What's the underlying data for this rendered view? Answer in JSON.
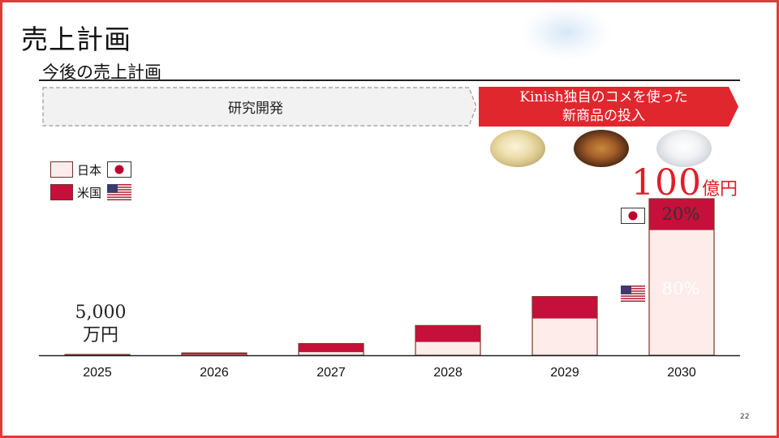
{
  "slide": {
    "title": "売上計画",
    "subtitle": "今後の売上計画",
    "page_number": "22"
  },
  "phases": [
    {
      "label": "研究開発"
    },
    {
      "label": "Kinish独自のコメを使った\n新商品の投入"
    }
  ],
  "legend": [
    {
      "label": "日本",
      "flag": "japan-flag-icon",
      "color": "#fdecea"
    },
    {
      "label": "米国",
      "flag": "usa-flag-icon",
      "color": "#c4103a"
    }
  ],
  "annotations": {
    "amount_2025": "5,000\n万円",
    "total_2030_value": "100",
    "total_2030_unit": "億円",
    "share_japan": "20%",
    "share_us": "80%",
    "accent_color": "#e11d2a"
  },
  "chart_data": {
    "type": "bar",
    "stacked": true,
    "categories": [
      "2025",
      "2026",
      "2027",
      "2028",
      "2029",
      "2030"
    ],
    "series": [
      {
        "name": "米国",
        "values": [
          0.3,
          0.5,
          2,
          8.5,
          23.5,
          80
        ]
      },
      {
        "name": "日本",
        "values": [
          0.2,
          1,
          5.5,
          10.5,
          14,
          20
        ]
      }
    ],
    "unit": "億円",
    "ylim": [
      0,
      100
    ],
    "y_axis_visible": false,
    "grid": false,
    "legend_position": "top-left"
  }
}
